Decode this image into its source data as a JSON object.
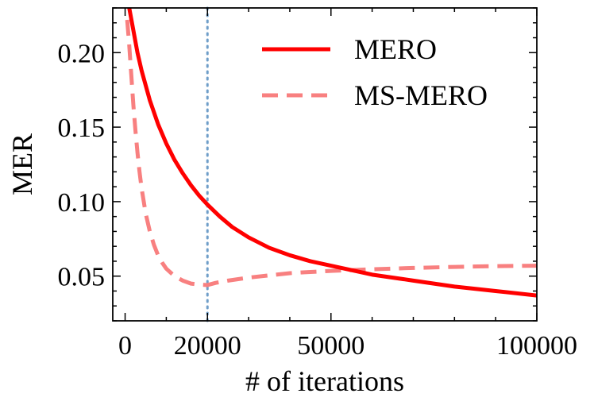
{
  "chart_data": {
    "type": "line",
    "title": "",
    "xlabel": "# of iterations",
    "ylabel": "MER",
    "xlim": [
      -3000,
      100000
    ],
    "ylim": [
      0.02,
      0.23
    ],
    "xticks": [
      0,
      20000,
      50000,
      100000
    ],
    "xtick_labels": [
      "0",
      "20000",
      "50000",
      "100000"
    ],
    "yticks": [
      0.05,
      0.1,
      0.15,
      0.2
    ],
    "ytick_labels": [
      "0.05",
      "0.10",
      "0.15",
      "0.20"
    ],
    "x_minor_step": 10000,
    "y_minor_step": 0.01,
    "vline": {
      "x": 20000,
      "color": "#6f9ec9",
      "style": "dotted"
    },
    "legend_position": "upper-right",
    "series": [
      {
        "name": "MERO",
        "color": "#ff0000",
        "style": "solid",
        "points": [
          [
            1000,
            0.23
          ],
          [
            2000,
            0.215
          ],
          [
            3000,
            0.2
          ],
          [
            4000,
            0.188
          ],
          [
            5000,
            0.178
          ],
          [
            6000,
            0.168
          ],
          [
            7000,
            0.16
          ],
          [
            8000,
            0.152
          ],
          [
            10000,
            0.139
          ],
          [
            12000,
            0.128
          ],
          [
            14000,
            0.119
          ],
          [
            16000,
            0.111
          ],
          [
            18000,
            0.104
          ],
          [
            20000,
            0.098
          ],
          [
            23000,
            0.09
          ],
          [
            26000,
            0.083
          ],
          [
            30000,
            0.076
          ],
          [
            35000,
            0.069
          ],
          [
            40000,
            0.064
          ],
          [
            45000,
            0.06
          ],
          [
            50000,
            0.057
          ],
          [
            55000,
            0.054
          ],
          [
            60000,
            0.051
          ],
          [
            70000,
            0.047
          ],
          [
            80000,
            0.043
          ],
          [
            90000,
            0.04
          ],
          [
            100000,
            0.037
          ]
        ]
      },
      {
        "name": "MS-MERO",
        "color": "#f88080",
        "style": "dashed",
        "points": [
          [
            500,
            0.222
          ],
          [
            1000,
            0.205
          ],
          [
            1500,
            0.185
          ],
          [
            2000,
            0.165
          ],
          [
            2500,
            0.148
          ],
          [
            3000,
            0.133
          ],
          [
            3500,
            0.12
          ],
          [
            4000,
            0.109
          ],
          [
            5000,
            0.092
          ],
          [
            6000,
            0.08
          ],
          [
            7000,
            0.071
          ],
          [
            8000,
            0.064
          ],
          [
            9000,
            0.059
          ],
          [
            10000,
            0.055
          ],
          [
            12000,
            0.05
          ],
          [
            14000,
            0.047
          ],
          [
            16000,
            0.045
          ],
          [
            18000,
            0.0443
          ],
          [
            20000,
            0.044
          ],
          [
            22000,
            0.0455
          ],
          [
            25000,
            0.047
          ],
          [
            30000,
            0.049
          ],
          [
            35000,
            0.0505
          ],
          [
            40000,
            0.052
          ],
          [
            45000,
            0.0528
          ],
          [
            50000,
            0.0535
          ],
          [
            60000,
            0.0546
          ],
          [
            70000,
            0.0555
          ],
          [
            80000,
            0.0562
          ],
          [
            90000,
            0.0567
          ],
          [
            100000,
            0.057
          ]
        ]
      }
    ]
  }
}
